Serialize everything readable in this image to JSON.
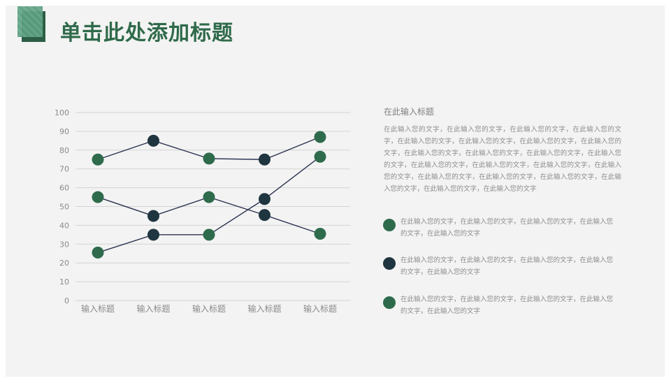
{
  "title": "单击此处添加标题",
  "side": {
    "heading": "在此输入标题",
    "paragraph": "在此输入您的文字，在此输入您的文字，在此输入您的文字，在此输入您的文字，在此输入您的文字，在此输入您的文字，在此输入您的文字，在此输入您的文字，在此输入您的文字，在此输入您的文字，在此输入您的文字，在此输入您的文字，在此输入您的文字，在此输入您的文字，在此输入您的文字，在此输入您的文字，在此输入您的文字，在此输入您的文字，在此输入您的文字，在此输入您的文字，在此输入您的文字，在此输入您的文字",
    "bullets": [
      {
        "text": "在此输入您的文字，在此输入您的文字，在此输入您的文字，在此输入您的文字，在此输入您的文字",
        "color": "#2e6b4c"
      },
      {
        "text": "在此输入您的文字，在此输入您的文字，在此输入您的文字，在此输入您的文字，在此输入您的文字",
        "color": "#1f3540"
      },
      {
        "text": "在此输入您的文字，在此输入您的文字，在此输入您的文字，在此输入您的文字，在此输入您的文字",
        "color": "#2e6b4c"
      }
    ]
  },
  "chart_data": {
    "type": "line",
    "categories": [
      "输入标题",
      "输入标题",
      "输入标题",
      "输入标题",
      "输入标题"
    ],
    "ylim": [
      0,
      100
    ],
    "yticks": [
      0,
      10,
      20,
      30,
      40,
      50,
      60,
      70,
      80,
      90,
      100
    ],
    "grid": true,
    "series": [
      {
        "values": [
          75,
          85,
          75.5,
          75,
          87
        ],
        "color": "#2e6b4c"
      },
      {
        "values": [
          55,
          45,
          55,
          45.5,
          35.5
        ],
        "color": "#2e6b4c"
      },
      {
        "values": [
          25.5,
          35,
          35,
          54,
          76.5
        ],
        "color": "#2e6b4c"
      }
    ],
    "point_colors": [
      [
        "#2e6b4c",
        "#1f3540",
        "#2e6b4c",
        "#1f3540",
        "#2e6b4c"
      ],
      [
        "#2e6b4c",
        "#1f3540",
        "#2e6b4c",
        "#1f3540",
        "#2e6b4c"
      ],
      [
        "#2e6b4c",
        "#1f3540",
        "#2e6b4c",
        "#1f3540",
        "#2e6b4c"
      ]
    ],
    "line_color": "#2b3350"
  }
}
